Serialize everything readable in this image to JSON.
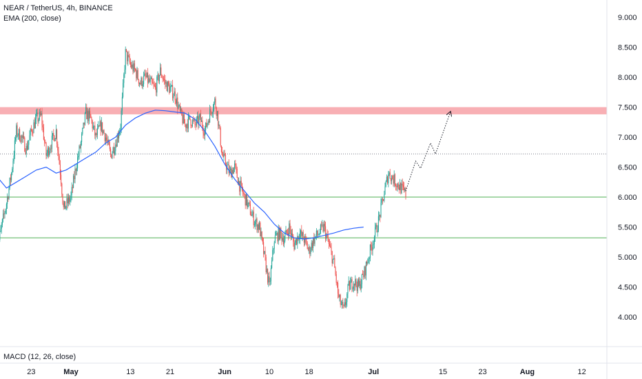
{
  "header": {
    "symbol_line": "NEAR / TetherUS, 4h, BINANCE",
    "indicator_line": "EMA (200, close)"
  },
  "lower_pane": {
    "indicator_label": "MACD (12, 26, close)"
  },
  "colors": {
    "up": "#26a69a",
    "down": "#ef5350",
    "ema": "#2962ff",
    "support_line": "#4caf50",
    "resistance_zone": "#f7a1a7",
    "dotted": "#787b86"
  },
  "chart_data": {
    "type": "candlestick",
    "title": "NEAR / TetherUS, 4h, BINANCE",
    "ylim": [
      3.6,
      9.2
    ],
    "y_ticks": [
      "9.000",
      "8.500",
      "8.000",
      "7.500",
      "7.000",
      "6.500",
      "6.000",
      "5.500",
      "5.000",
      "4.500",
      "4.000"
    ],
    "y_tick_values": [
      9.0,
      8.5,
      8.0,
      7.5,
      7.0,
      6.5,
      6.0,
      5.5,
      5.0,
      4.5,
      4.0
    ],
    "x_ticks": [
      {
        "label": "23",
        "bold": false,
        "day": -8
      },
      {
        "label": "May",
        "bold": true,
        "day": 0
      },
      {
        "label": "13",
        "bold": false,
        "day": 12
      },
      {
        "label": "21",
        "bold": false,
        "day": 20
      },
      {
        "label": "Jun",
        "bold": true,
        "day": 31
      },
      {
        "label": "10",
        "bold": false,
        "day": 40
      },
      {
        "label": "18",
        "bold": false,
        "day": 48
      },
      {
        "label": "Jul",
        "bold": true,
        "day": 61
      },
      {
        "label": "15",
        "bold": false,
        "day": 75
      },
      {
        "label": "23",
        "bold": false,
        "day": 83
      },
      {
        "label": "Aug",
        "bold": true,
        "day": 92
      },
      {
        "label": "12",
        "bold": false,
        "day": 103
      }
    ],
    "price_path": [
      [
        -15.0,
        5.05
      ],
      [
        -14.0,
        5.5
      ],
      [
        -13.0,
        5.9
      ],
      [
        -12.0,
        6.4
      ],
      [
        -11.0,
        7.1
      ],
      [
        -10.0,
        7.0
      ],
      [
        -9.0,
        6.8
      ],
      [
        -8.0,
        7.1
      ],
      [
        -7.0,
        7.3
      ],
      [
        -6.0,
        7.35
      ],
      [
        -5.0,
        6.7
      ],
      [
        -4.0,
        6.9
      ],
      [
        -3.0,
        7.1
      ],
      [
        -2.0,
        6.3
      ],
      [
        -1.5,
        5.8
      ],
      [
        0.0,
        6.0
      ],
      [
        1.0,
        6.5
      ],
      [
        2.0,
        6.9
      ],
      [
        3.0,
        7.4
      ],
      [
        4.0,
        7.3
      ],
      [
        5.0,
        7.0
      ],
      [
        6.0,
        7.2
      ],
      [
        7.0,
        7.0
      ],
      [
        8.0,
        6.7
      ],
      [
        9.0,
        6.9
      ],
      [
        10.0,
        7.2
      ],
      [
        11.0,
        8.4
      ],
      [
        12.0,
        8.2
      ],
      [
        13.0,
        8.1
      ],
      [
        14.0,
        7.9
      ],
      [
        15.0,
        8.0
      ],
      [
        16.0,
        7.9
      ],
      [
        17.0,
        7.8
      ],
      [
        18.0,
        8.1
      ],
      [
        19.0,
        7.9
      ],
      [
        20.0,
        7.8
      ],
      [
        21.0,
        7.7
      ],
      [
        22.0,
        7.4
      ],
      [
        23.0,
        7.2
      ],
      [
        24.0,
        7.3
      ],
      [
        25.0,
        7.2
      ],
      [
        26.0,
        7.3
      ],
      [
        27.0,
        7.1
      ],
      [
        28.0,
        7.4
      ],
      [
        29.0,
        7.6
      ],
      [
        29.5,
        7.4
      ],
      [
        30.5,
        6.7
      ],
      [
        31.0,
        6.6
      ],
      [
        32.0,
        6.4
      ],
      [
        33.0,
        6.5
      ],
      [
        34.0,
        6.2
      ],
      [
        35.0,
        6.0
      ],
      [
        36.0,
        5.8
      ],
      [
        37.0,
        5.6
      ],
      [
        38.0,
        5.5
      ],
      [
        39.0,
        5.0
      ],
      [
        40.0,
        4.5
      ],
      [
        41.0,
        5.3
      ],
      [
        42.0,
        5.4
      ],
      [
        43.0,
        5.3
      ],
      [
        44.0,
        5.5
      ],
      [
        45.0,
        5.2
      ],
      [
        46.0,
        5.4
      ],
      [
        47.0,
        5.3
      ],
      [
        48.0,
        5.1
      ],
      [
        49.0,
        5.3
      ],
      [
        50.0,
        5.4
      ],
      [
        51.0,
        5.5
      ],
      [
        52.0,
        5.2
      ],
      [
        53.0,
        4.9
      ],
      [
        54.0,
        4.3
      ],
      [
        55.0,
        4.1
      ],
      [
        56.0,
        4.5
      ],
      [
        57.0,
        4.6
      ],
      [
        58.0,
        4.5
      ],
      [
        59.0,
        4.7
      ],
      [
        60.0,
        5.0
      ],
      [
        61.0,
        5.3
      ],
      [
        62.0,
        5.6
      ],
      [
        63.0,
        6.0
      ],
      [
        64.0,
        6.4
      ],
      [
        65.0,
        6.3
      ],
      [
        66.0,
        6.2
      ],
      [
        67.0,
        6.1
      ],
      [
        67.5,
        6.05
      ]
    ],
    "ema_200": [
      [
        -15.0,
        6.35
      ],
      [
        -13.0,
        6.15
      ],
      [
        -11.0,
        6.25
      ],
      [
        -9.0,
        6.35
      ],
      [
        -7.0,
        6.45
      ],
      [
        -5.0,
        6.5
      ],
      [
        -3.0,
        6.4
      ],
      [
        -1.0,
        6.45
      ],
      [
        1.0,
        6.55
      ],
      [
        3.0,
        6.65
      ],
      [
        5.0,
        6.75
      ],
      [
        7.0,
        6.9
      ],
      [
        9.0,
        7.0
      ],
      [
        11.0,
        7.2
      ],
      [
        13.0,
        7.32
      ],
      [
        15.0,
        7.4
      ],
      [
        17.0,
        7.45
      ],
      [
        19.0,
        7.44
      ],
      [
        21.0,
        7.42
      ],
      [
        23.0,
        7.4
      ],
      [
        25.0,
        7.3
      ],
      [
        27.0,
        7.1
      ],
      [
        29.0,
        6.85
      ],
      [
        31.0,
        6.55
      ],
      [
        33.0,
        6.3
      ],
      [
        35.0,
        6.1
      ],
      [
        37.0,
        5.9
      ],
      [
        39.0,
        5.75
      ],
      [
        41.0,
        5.55
      ],
      [
        43.0,
        5.4
      ],
      [
        45.0,
        5.32
      ],
      [
        47.0,
        5.3
      ],
      [
        49.0,
        5.32
      ],
      [
        51.0,
        5.36
      ],
      [
        53.0,
        5.4
      ],
      [
        55.0,
        5.45
      ],
      [
        57.0,
        5.48
      ],
      [
        59.0,
        5.5
      ]
    ],
    "horizontal_levels": [
      6.72,
      6.0,
      5.32
    ],
    "resistance_zone": [
      7.38,
      7.5
    ],
    "projection_path": [
      [
        67.5,
        6.1
      ],
      [
        69.5,
        6.6
      ],
      [
        70.5,
        6.48
      ],
      [
        72.5,
        6.9
      ],
      [
        73.5,
        6.72
      ],
      [
        76.5,
        7.42
      ]
    ],
    "xlabel": "",
    "ylabel": ""
  }
}
